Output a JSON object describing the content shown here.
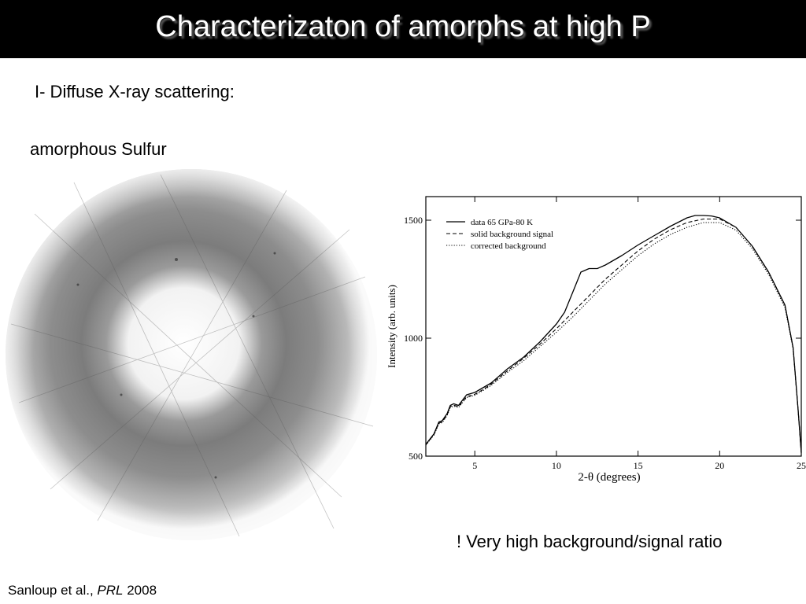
{
  "slide": {
    "title": "Characterizaton of amorphs at high P",
    "subtitle": "I- Diffuse X-ray scattering:",
    "sample_label": "amorphous Sulfur",
    "note": "! Very high background/signal ratio",
    "citation": {
      "authors": "Sanloup et al., ",
      "journal": "PRL",
      "year": " 2008"
    }
  },
  "chart_data": {
    "type": "line",
    "xlabel": "2-θ  (degrees)",
    "ylabel": "Intensity (arb. units)",
    "xlim": [
      2,
      25
    ],
    "ylim": [
      500,
      1600
    ],
    "xticks": [
      5,
      10,
      15,
      20,
      25
    ],
    "yticks": [
      500,
      1000,
      1500
    ],
    "legend_position": "top-left",
    "grid": false,
    "series": [
      {
        "name": "data 65 GPa-80 K",
        "style": "solid",
        "x": [
          2.0,
          2.5,
          2.8,
          3.0,
          3.3,
          3.5,
          3.7,
          4.0,
          4.5,
          5.0,
          5.5,
          6.0,
          7.0,
          8.0,
          9.0,
          10.0,
          10.5,
          11.0,
          11.5,
          12.0,
          12.5,
          13.0,
          14.0,
          15.0,
          16.0,
          17.0,
          18.0,
          18.5,
          19.0,
          19.5,
          20.0,
          21.0,
          22.0,
          23.0,
          24.0,
          24.5,
          24.8,
          25.0
        ],
        "y": [
          550,
          595,
          645,
          650,
          680,
          715,
          722,
          715,
          760,
          770,
          790,
          810,
          870,
          920,
          985,
          1060,
          1110,
          1195,
          1280,
          1295,
          1295,
          1310,
          1350,
          1395,
          1435,
          1475,
          1510,
          1520,
          1520,
          1518,
          1510,
          1470,
          1390,
          1280,
          1140,
          960,
          700,
          515
        ]
      },
      {
        "name": "solid background signal",
        "style": "dashed",
        "x": [
          2.0,
          2.5,
          2.8,
          3.0,
          3.3,
          3.5,
          3.7,
          4.0,
          4.5,
          5.0,
          5.5,
          6.0,
          7.0,
          8.0,
          9.0,
          10.0,
          11.0,
          12.0,
          13.0,
          14.0,
          15.0,
          16.0,
          17.0,
          18.0,
          19.0,
          20.0,
          21.0,
          22.0,
          23.0,
          24.0,
          24.5,
          24.8,
          25.0
        ],
        "y": [
          548,
          592,
          640,
          645,
          675,
          710,
          716,
          710,
          752,
          762,
          782,
          805,
          862,
          915,
          975,
          1040,
          1110,
          1180,
          1250,
          1310,
          1370,
          1420,
          1460,
          1490,
          1505,
          1505,
          1470,
          1390,
          1280,
          1140,
          960,
          700,
          515
        ]
      },
      {
        "name": "corrected background",
        "style": "dotted",
        "x": [
          2.0,
          2.5,
          2.8,
          3.0,
          3.3,
          3.5,
          3.7,
          4.0,
          4.5,
          5.0,
          5.5,
          6.0,
          7.0,
          8.0,
          9.0,
          10.0,
          11.0,
          12.0,
          13.0,
          14.0,
          15.0,
          16.0,
          17.0,
          18.0,
          19.0,
          20.0,
          21.0,
          22.0,
          23.0,
          24.0,
          24.5,
          24.8,
          25.0
        ],
        "y": [
          546,
          590,
          637,
          642,
          672,
          706,
          712,
          706,
          748,
          758,
          778,
          800,
          855,
          905,
          965,
          1025,
          1090,
          1160,
          1230,
          1290,
          1350,
          1400,
          1440,
          1470,
          1490,
          1490,
          1458,
          1380,
          1270,
          1130,
          955,
          700,
          515
        ]
      }
    ]
  }
}
